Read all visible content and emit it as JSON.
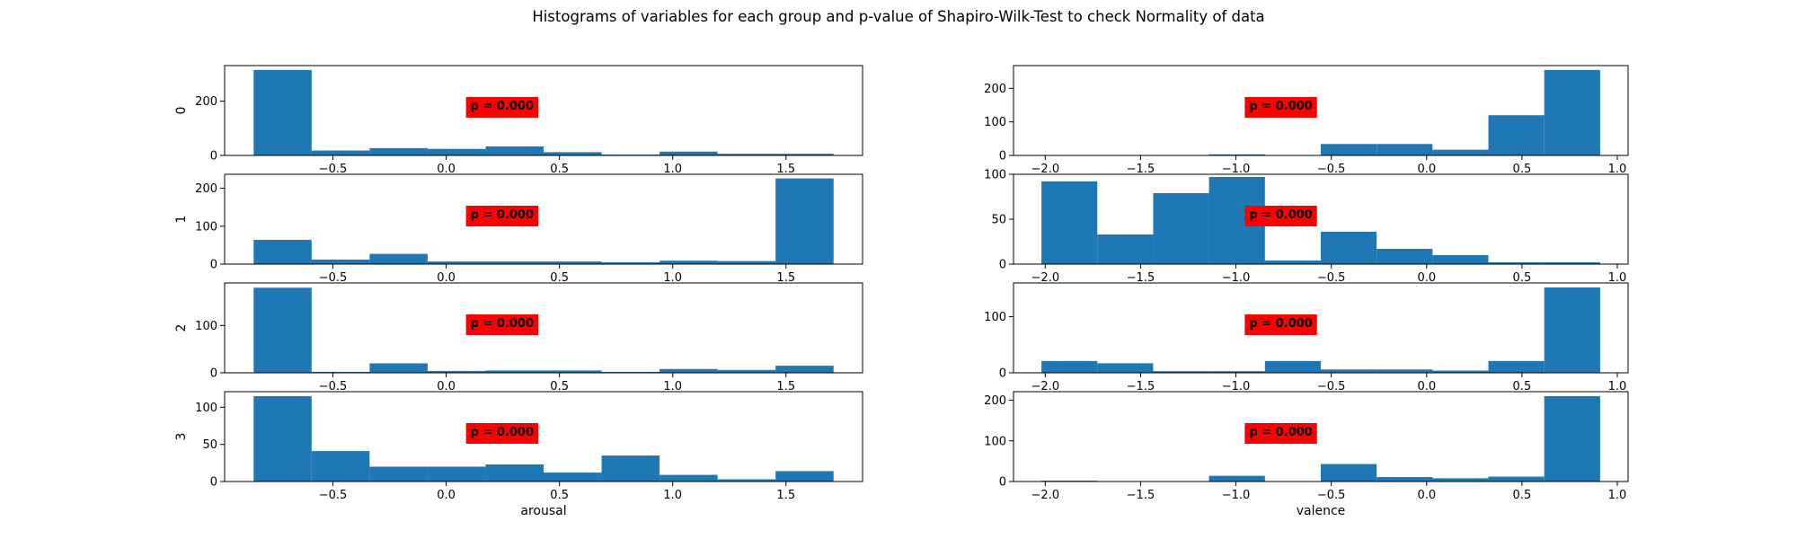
{
  "title": "Histograms of variables for each group and p-value of Shapiro-Wilk-Test to check Normality of data",
  "colors": {
    "bar": "#1f77b4",
    "annotation_bg": "#ff0000",
    "axes": "#000000"
  },
  "row_labels": [
    "0",
    "1",
    "2",
    "3"
  ],
  "column_xlabels": [
    "arousal",
    "valence"
  ],
  "chart_data": [
    {
      "type": "bar",
      "group": "0",
      "variable": "arousal",
      "xlabel": "",
      "ylabel": "0",
      "bin_edges": [
        -0.85,
        -0.594,
        -0.338,
        -0.082,
        0.174,
        0.43,
        0.686,
        0.942,
        1.198,
        1.454,
        1.71
      ],
      "counts": [
        315,
        18,
        27,
        24,
        33,
        12,
        3,
        14,
        6,
        6
      ],
      "xlim": [
        -0.978,
        1.838
      ],
      "ylim": [
        0,
        331
      ],
      "xticks": [
        -0.5,
        0.0,
        0.5,
        1.0,
        1.5
      ],
      "xtick_labels": [
        "−0.5",
        "0.0",
        "0.5",
        "1.0",
        "1.5"
      ],
      "yticks": [
        0,
        200
      ],
      "ytick_labels": [
        "0",
        "200"
      ],
      "annotation": "p = 0.000"
    },
    {
      "type": "bar",
      "group": "0",
      "variable": "valence",
      "xlabel": "",
      "ylabel": "",
      "bin_edges": [
        -2.02,
        -1.727,
        -1.434,
        -1.141,
        -0.848,
        -0.555,
        -0.262,
        0.031,
        0.324,
        0.617,
        0.91
      ],
      "counts": [
        0,
        0,
        1,
        3,
        1,
        34,
        34,
        17,
        120,
        255
      ],
      "xlim": [
        -2.1665,
        1.0565
      ],
      "ylim": [
        0,
        268
      ],
      "xticks": [
        -2.0,
        -1.5,
        -1.0,
        -0.5,
        0.0,
        0.5,
        1.0
      ],
      "xtick_labels": [
        "−2.0",
        "−1.5",
        "−1.0",
        "−0.5",
        "0.0",
        "0.5",
        "1.0"
      ],
      "yticks": [
        0,
        100,
        200
      ],
      "ytick_labels": [
        "0",
        "100",
        "200"
      ],
      "annotation": "p = 0.000"
    },
    {
      "type": "bar",
      "group": "1",
      "variable": "arousal",
      "xlabel": "",
      "ylabel": "1",
      "bin_edges": [
        -0.85,
        -0.594,
        -0.338,
        -0.082,
        0.174,
        0.43,
        0.686,
        0.942,
        1.198,
        1.454,
        1.71
      ],
      "counts": [
        64,
        12,
        27,
        7,
        7,
        7,
        5,
        9,
        8,
        226
      ],
      "xlim": [
        -0.978,
        1.838
      ],
      "ylim": [
        0,
        237
      ],
      "xticks": [
        -0.5,
        0.0,
        0.5,
        1.0,
        1.5
      ],
      "xtick_labels": [
        "−0.5",
        "0.0",
        "0.5",
        "1.0",
        "1.5"
      ],
      "yticks": [
        0,
        100,
        200
      ],
      "ytick_labels": [
        "0",
        "100",
        "200"
      ],
      "annotation": "p = 0.000"
    },
    {
      "type": "bar",
      "group": "1",
      "variable": "valence",
      "xlabel": "",
      "ylabel": "",
      "bin_edges": [
        -2.02,
        -1.727,
        -1.434,
        -1.141,
        -0.848,
        -0.555,
        -0.262,
        0.031,
        0.324,
        0.617,
        0.91
      ],
      "counts": [
        92,
        33,
        79,
        97,
        4,
        36,
        17,
        10,
        2,
        2
      ],
      "xlim": [
        -2.1665,
        1.0565
      ],
      "ylim": [
        0,
        100
      ],
      "xticks": [
        -2.0,
        -1.5,
        -1.0,
        -0.5,
        0.0,
        0.5,
        1.0
      ],
      "xtick_labels": [
        "−2.0",
        "−1.5",
        "−1.0",
        "−0.5",
        "0.0",
        "0.5",
        "1.0"
      ],
      "yticks": [
        0,
        50,
        100
      ],
      "ytick_labels": [
        "0",
        "50",
        "100"
      ],
      "annotation": "p = 0.000"
    },
    {
      "type": "bar",
      "group": "2",
      "variable": "arousal",
      "xlabel": "",
      "ylabel": "2",
      "bin_edges": [
        -0.85,
        -0.594,
        -0.338,
        -0.082,
        0.174,
        0.43,
        0.686,
        0.942,
        1.198,
        1.454,
        1.71
      ],
      "counts": [
        180,
        2,
        20,
        4,
        5,
        5,
        2,
        8,
        6,
        15
      ],
      "xlim": [
        -0.978,
        1.838
      ],
      "ylim": [
        0,
        190
      ],
      "xticks": [
        -0.5,
        0.0,
        0.5,
        1.0,
        1.5
      ],
      "xtick_labels": [
        "−0.5",
        "0.0",
        "0.5",
        "1.0",
        "1.5"
      ],
      "yticks": [
        0,
        100
      ],
      "ytick_labels": [
        "0",
        "100"
      ],
      "annotation": "p = 0.000"
    },
    {
      "type": "bar",
      "group": "2",
      "variable": "valence",
      "xlabel": "",
      "ylabel": "",
      "bin_edges": [
        -2.02,
        -1.727,
        -1.434,
        -1.141,
        -0.848,
        -0.555,
        -0.262,
        0.031,
        0.324,
        0.617,
        0.91
      ],
      "counts": [
        21,
        17,
        3,
        3,
        21,
        6,
        6,
        4,
        21,
        152
      ],
      "xlim": [
        -2.1665,
        1.0565
      ],
      "ylim": [
        0,
        160
      ],
      "xticks": [
        -2.0,
        -1.5,
        -1.0,
        -0.5,
        0.0,
        0.5,
        1.0
      ],
      "xtick_labels": [
        "−2.0",
        "−1.5",
        "−1.0",
        "−0.5",
        "0.0",
        "0.5",
        "1.0"
      ],
      "yticks": [
        0,
        100
      ],
      "ytick_labels": [
        "0",
        "100"
      ],
      "annotation": "p = 0.000"
    },
    {
      "type": "bar",
      "group": "3",
      "variable": "arousal",
      "xlabel": "arousal",
      "ylabel": "3",
      "bin_edges": [
        -0.85,
        -0.594,
        -0.338,
        -0.082,
        0.174,
        0.43,
        0.686,
        0.942,
        1.198,
        1.454,
        1.71
      ],
      "counts": [
        115,
        41,
        20,
        20,
        23,
        12,
        35,
        9,
        3,
        14
      ],
      "xlim": [
        -0.978,
        1.838
      ],
      "ylim": [
        0,
        121
      ],
      "xticks": [
        -0.5,
        0.0,
        0.5,
        1.0,
        1.5
      ],
      "xtick_labels": [
        "−0.5",
        "0.0",
        "0.5",
        "1.0",
        "1.5"
      ],
      "yticks": [
        0,
        50,
        100
      ],
      "ytick_labels": [
        "0",
        "50",
        "100"
      ],
      "annotation": "p = 0.000"
    },
    {
      "type": "bar",
      "group": "3",
      "variable": "valence",
      "xlabel": "valence",
      "ylabel": "",
      "bin_edges": [
        -2.02,
        -1.727,
        -1.434,
        -1.141,
        -0.848,
        -0.555,
        -0.262,
        0.031,
        0.324,
        0.617,
        0.91
      ],
      "counts": [
        2,
        0,
        0,
        14,
        0,
        43,
        11,
        8,
        12,
        210
      ],
      "xlim": [
        -2.1665,
        1.0565
      ],
      "ylim": [
        0,
        221
      ],
      "xticks": [
        -2.0,
        -1.5,
        -1.0,
        -0.5,
        0.0,
        0.5,
        1.0
      ],
      "xtick_labels": [
        "−2.0",
        "−1.5",
        "−1.0",
        "−0.5",
        "0.0",
        "0.5",
        "1.0"
      ],
      "yticks": [
        0,
        100,
        200
      ],
      "ytick_labels": [
        "0",
        "100",
        "200"
      ],
      "annotation": "p = 0.000"
    }
  ]
}
